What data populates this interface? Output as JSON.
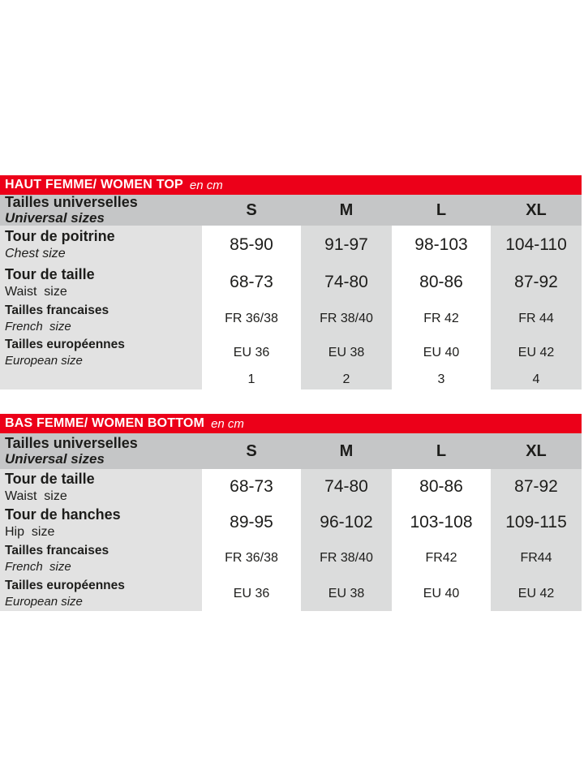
{
  "colors": {
    "accent_red": "#ec0019",
    "header_gray": "#c5c6c7",
    "label_gray": "#e2e2e2",
    "column_gray": "#dbdcdc",
    "text": "#1d1d1b"
  },
  "tables": [
    {
      "id": "women-top",
      "title": "HAUT FEMME/ WOMEN TOP",
      "unit": "en cm",
      "header": {
        "fr": "Tailles universelles",
        "en": "Universal sizes",
        "sizes": [
          "S",
          "M",
          "L",
          "XL"
        ]
      },
      "rows": [
        {
          "fr": "Tour de poitrine",
          "en": "Chest size",
          "en_italic": true,
          "kind": "large",
          "values": [
            "85-90",
            "91-97",
            "98-103",
            "104-110"
          ]
        },
        {
          "fr": "Tour de taille",
          "en": "Waist  size",
          "en_italic": false,
          "kind": "large",
          "values": [
            "68-73",
            "74-80",
            "80-86",
            "87-92"
          ]
        },
        {
          "fr": "Tailles francaises",
          "en": "French  size",
          "en_italic": true,
          "kind": "small",
          "values": [
            "FR 36/38",
            "FR 38/40",
            "FR 42",
            "FR 44"
          ]
        },
        {
          "fr": "Tailles européennes",
          "en": "European size",
          "en_italic": true,
          "kind": "small",
          "values": [
            "EU 36",
            "EU 38",
            "EU 40",
            "EU 42"
          ]
        },
        {
          "fr": "",
          "en": "",
          "en_italic": false,
          "kind": "nums",
          "values": [
            "1",
            "2",
            "3",
            "4"
          ]
        }
      ]
    },
    {
      "id": "women-bottom",
      "title": "BAS FEMME/ WOMEN BOTTOM",
      "unit": "en cm",
      "header": {
        "fr": "Tailles universelles",
        "en": "Universal sizes",
        "sizes": [
          "S",
          "M",
          "L",
          "XL"
        ]
      },
      "rows": [
        {
          "fr": "Tour de taille",
          "en": "Waist  size",
          "en_italic": false,
          "kind": "large",
          "values": [
            "68-73",
            "74-80",
            "80-86",
            "87-92"
          ]
        },
        {
          "fr": "Tour de hanches",
          "en": "Hip  size",
          "en_italic": false,
          "kind": "large",
          "values": [
            "89-95",
            "96-102",
            "103-108",
            "109-115"
          ]
        },
        {
          "fr": "Tailles francaises",
          "en": "French  size",
          "en_italic": true,
          "kind": "small",
          "values": [
            "FR 36/38",
            "FR 38/40",
            "FR42",
            "FR44"
          ]
        },
        {
          "fr": "Tailles européennes",
          "en": "European size",
          "en_italic": true,
          "kind": "small",
          "values": [
            "EU 36",
            "EU 38",
            "EU 40",
            "EU 42"
          ]
        }
      ]
    }
  ]
}
